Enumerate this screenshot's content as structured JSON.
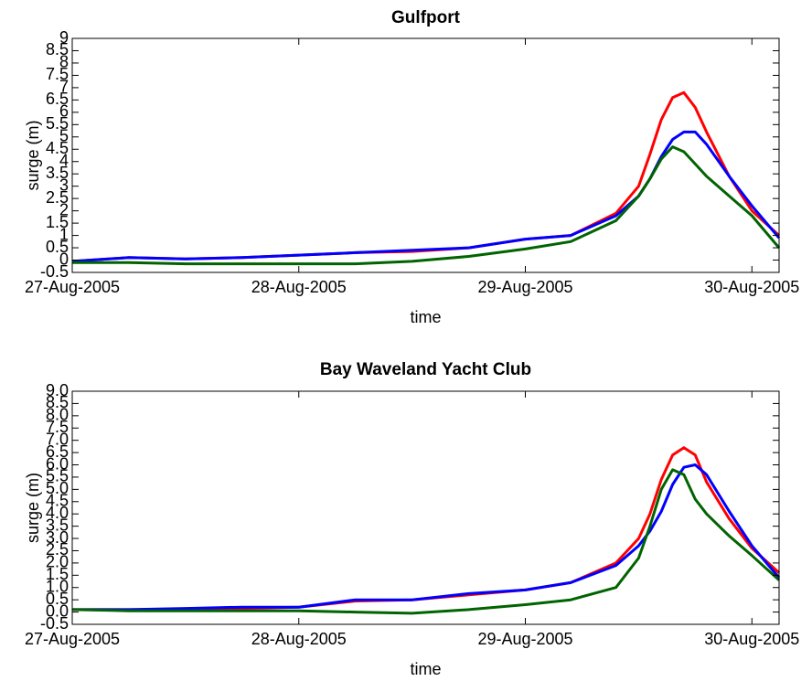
{
  "chart_data": [
    {
      "type": "line",
      "title": "Gulfport",
      "xlabel": "time",
      "ylabel": "surge (m)",
      "x": [
        0,
        0.25,
        0.5,
        0.75,
        1,
        1.25,
        1.5,
        1.75,
        2,
        2.2,
        2.4,
        2.5,
        2.55,
        2.6,
        2.65,
        2.7,
        2.75,
        2.8,
        2.9,
        3.0,
        3.12
      ],
      "series": [
        {
          "color": "#ff0000",
          "values": [
            -0.05,
            0.1,
            0.05,
            0.1,
            0.2,
            0.3,
            0.35,
            0.5,
            0.85,
            1.0,
            1.9,
            3.0,
            4.3,
            5.7,
            6.6,
            6.8,
            6.2,
            5.2,
            3.4,
            2.0,
            1.0
          ]
        },
        {
          "color": "#0000ff",
          "values": [
            -0.05,
            0.1,
            0.05,
            0.1,
            0.2,
            0.3,
            0.4,
            0.5,
            0.85,
            1.0,
            1.8,
            2.6,
            3.3,
            4.2,
            4.9,
            5.2,
            5.2,
            4.7,
            3.4,
            2.2,
            0.9
          ]
        },
        {
          "color": "#006400",
          "values": [
            -0.1,
            -0.1,
            -0.15,
            -0.15,
            -0.15,
            -0.15,
            -0.05,
            0.15,
            0.45,
            0.75,
            1.6,
            2.6,
            3.3,
            4.1,
            4.6,
            4.4,
            3.9,
            3.4,
            2.6,
            1.8,
            0.5
          ]
        }
      ],
      "xlim": [
        0,
        3.12
      ],
      "xticks": [
        {
          "value": 0,
          "label": "27-Aug-2005"
        },
        {
          "value": 1,
          "label": "28-Aug-2005"
        },
        {
          "value": 2,
          "label": "29-Aug-2005"
        },
        {
          "value": 3,
          "label": "30-Aug-2005"
        }
      ],
      "ylim": [
        -0.5,
        9
      ],
      "yticks": [
        -0.5,
        0,
        0.5,
        1,
        1.5,
        2,
        2.5,
        3,
        3.5,
        4,
        4.5,
        5,
        5.5,
        6,
        6.5,
        7,
        7.5,
        8,
        8.5,
        9
      ]
    },
    {
      "type": "line",
      "title": "Bay Waveland Yacht Club",
      "xlabel": "time",
      "ylabel": "surge (m)",
      "x": [
        0,
        0.25,
        0.5,
        0.75,
        1,
        1.25,
        1.5,
        1.75,
        2,
        2.2,
        2.4,
        2.5,
        2.55,
        2.6,
        2.65,
        2.7,
        2.75,
        2.8,
        2.9,
        3.0,
        3.12
      ],
      "series": [
        {
          "color": "#ff0000",
          "values": [
            0.1,
            0.1,
            0.1,
            0.15,
            0.2,
            0.45,
            0.5,
            0.7,
            0.9,
            1.2,
            2.0,
            3.0,
            4.0,
            5.4,
            6.4,
            6.7,
            6.4,
            5.3,
            3.8,
            2.6,
            1.6
          ]
        },
        {
          "color": "#0000ff",
          "values": [
            0.1,
            0.1,
            0.15,
            0.2,
            0.2,
            0.5,
            0.5,
            0.75,
            0.9,
            1.2,
            1.9,
            2.7,
            3.3,
            4.1,
            5.2,
            5.9,
            6.0,
            5.6,
            4.1,
            2.7,
            1.4
          ]
        },
        {
          "color": "#006400",
          "values": [
            0.1,
            0.05,
            0.05,
            0.05,
            0.05,
            0.0,
            -0.05,
            0.1,
            0.3,
            0.5,
            1.0,
            2.2,
            3.5,
            5.0,
            5.8,
            5.6,
            4.6,
            4.0,
            3.1,
            2.3,
            1.3
          ]
        }
      ],
      "xlim": [
        0,
        3.12
      ],
      "xticks": [
        {
          "value": 0,
          "label": "27-Aug-2005"
        },
        {
          "value": 1,
          "label": "28-Aug-2005"
        },
        {
          "value": 2,
          "label": "29-Aug-2005"
        },
        {
          "value": 3,
          "label": "30-Aug-2005"
        }
      ],
      "ylim": [
        -0.5,
        9
      ],
      "yticks": [
        -0.5,
        {
          "value": 0,
          "label": "0.0"
        },
        0.5,
        {
          "value": 1,
          "label": "1.0"
        },
        1.5,
        {
          "value": 2,
          "label": "2.0"
        },
        2.5,
        {
          "value": 3,
          "label": "3.0"
        },
        3.5,
        {
          "value": 4,
          "label": "4.0"
        },
        4.5,
        {
          "value": 5,
          "label": "5.0"
        },
        5.5,
        {
          "value": 6,
          "label": "6.0"
        },
        6.5,
        {
          "value": 7,
          "label": "7.0"
        },
        7.5,
        {
          "value": 8,
          "label": "8.0"
        },
        8.5,
        {
          "value": 9,
          "label": "9.0"
        }
      ]
    }
  ]
}
